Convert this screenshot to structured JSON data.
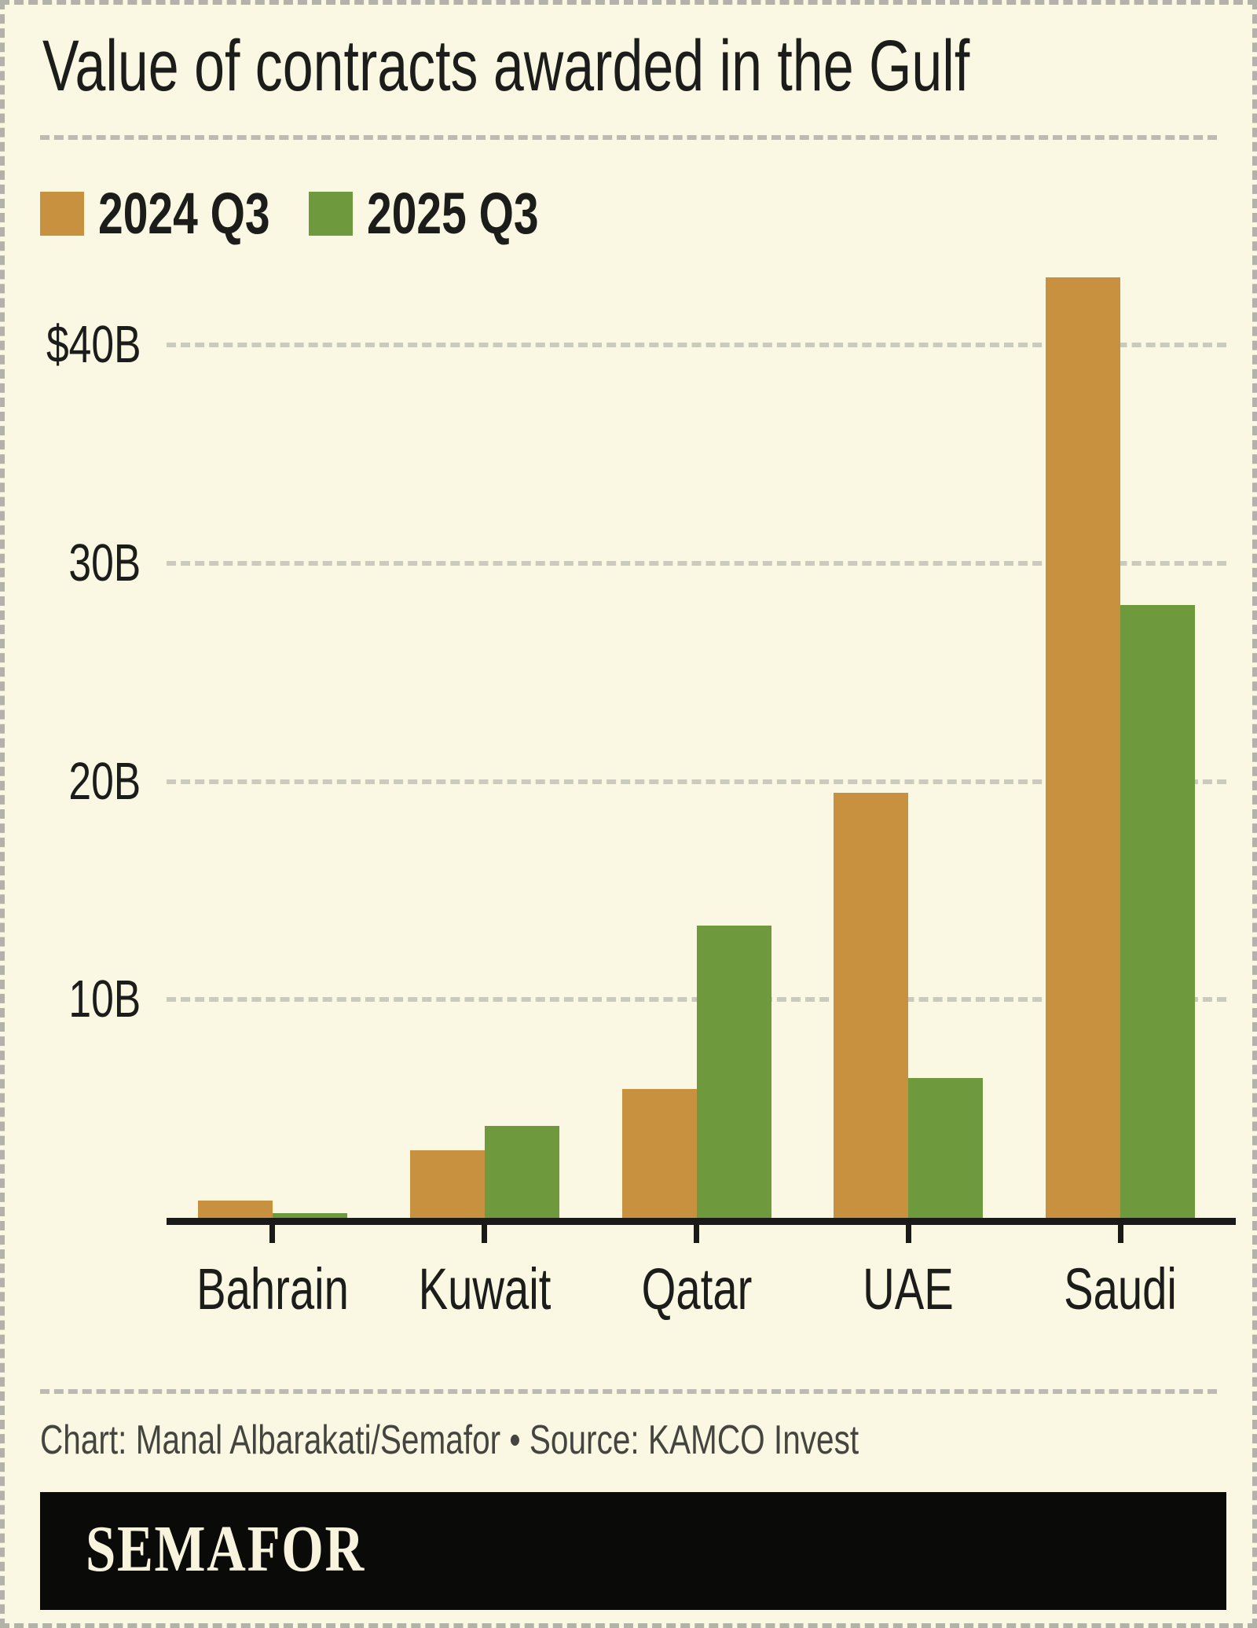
{
  "title": "Value of contracts awarded in the Gulf",
  "legend": [
    {
      "label": "2024 Q3",
      "color": "#C89140"
    },
    {
      "label": "2025 Q3",
      "color": "#6F993D"
    }
  ],
  "chart_data": {
    "type": "bar",
    "title": "Value of contracts awarded in the Gulf",
    "categories": [
      "Bahrain",
      "Kuwait",
      "Qatar",
      "UAE",
      "Saudi"
    ],
    "series": [
      {
        "name": "2024 Q3",
        "color": "#C89140",
        "values": [
          0.8,
          3.1,
          5.9,
          19.5,
          43.1
        ]
      },
      {
        "name": "2025 Q3",
        "color": "#6F993D",
        "values": [
          0.2,
          4.2,
          13.4,
          6.4,
          28.1
        ]
      }
    ],
    "unit": "billion USD",
    "xlabel": "",
    "ylabel": "",
    "ylim": [
      0,
      44.8
    ],
    "yticks": [
      {
        "value": 40,
        "label": "$40B"
      },
      {
        "value": 30,
        "label": "30B"
      },
      {
        "value": 20,
        "label": "20B"
      },
      {
        "value": 10,
        "label": "10B"
      }
    ],
    "grid": true,
    "gridstyle": "dashed",
    "legend_position": "top-left"
  },
  "footer": {
    "credit": "Chart: Manal Albarakati/Semafor • Source: KAMCO Invest",
    "logo_text": "SEMAFOR"
  },
  "colors": {
    "background": "#FAF7E2",
    "bar_2024": "#C89140",
    "bar_2025": "#6F993D",
    "axis": "#1A1A18",
    "gridline": "#CBCBBD",
    "border_dash": "#B2B2A9",
    "credit_text": "#45453F",
    "banner_bg": "#0A0A08",
    "logo_text": "#F7F3DC"
  }
}
